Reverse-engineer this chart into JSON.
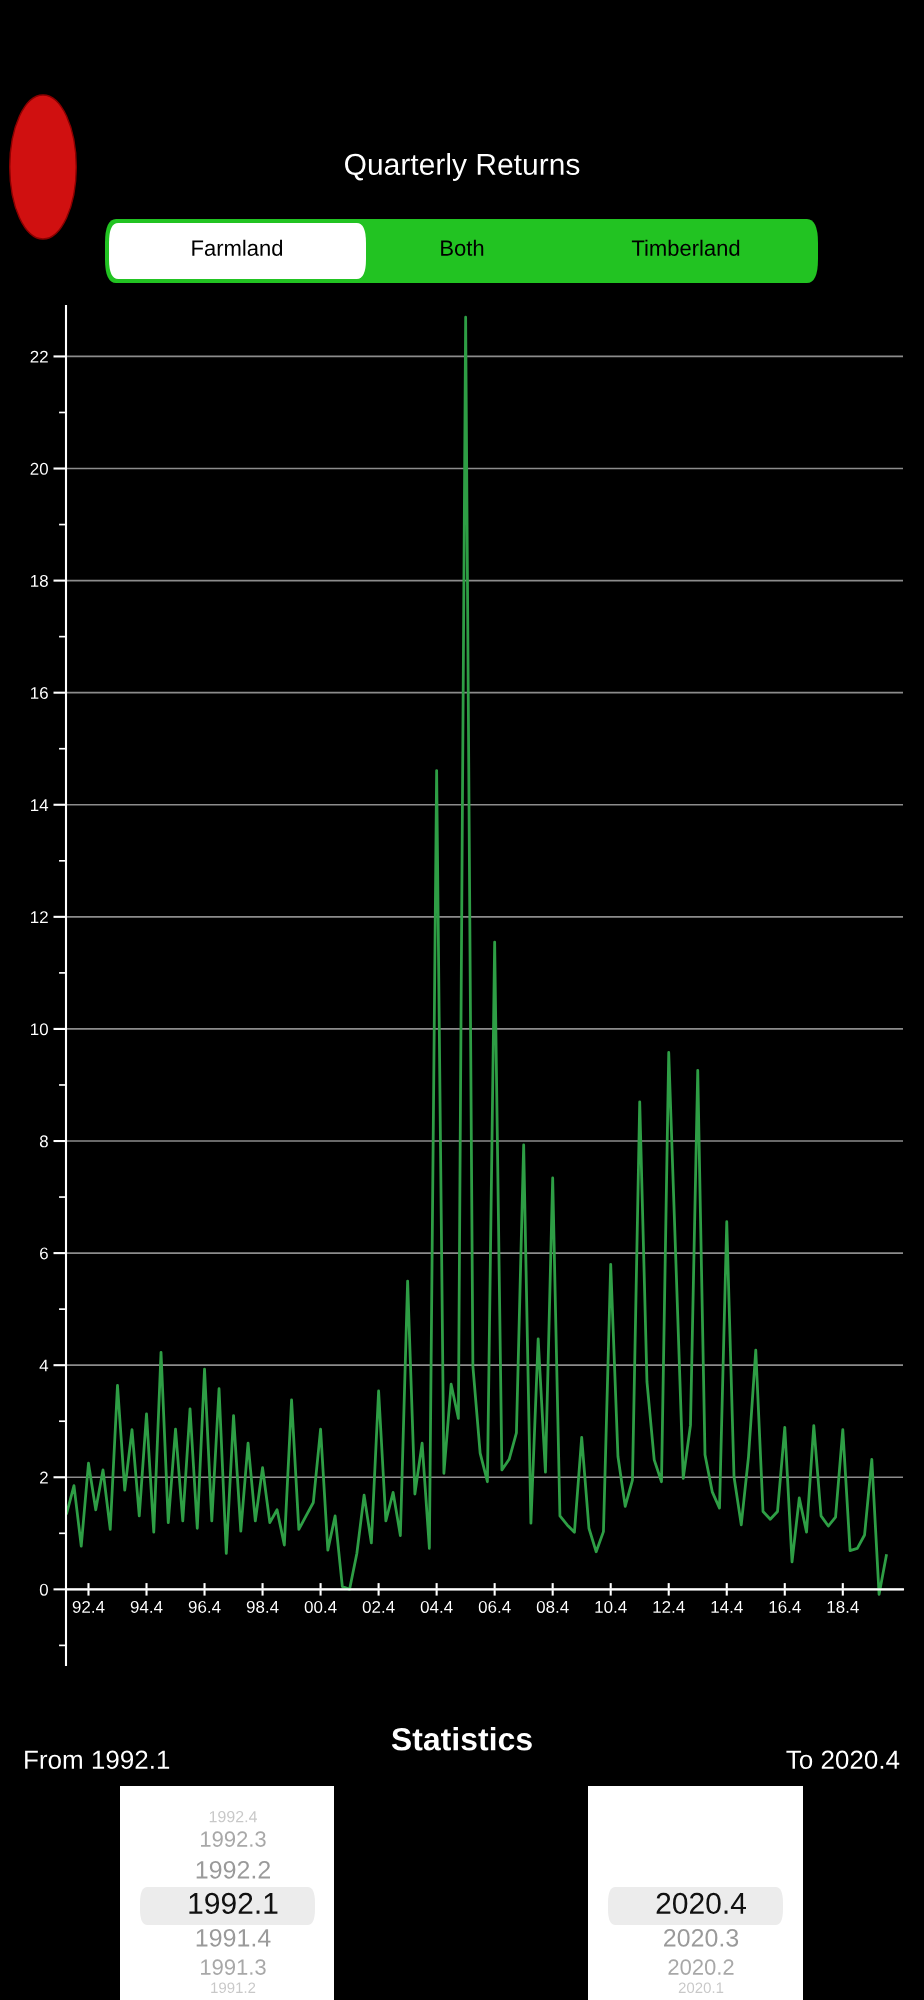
{
  "chart_data": {
    "type": "line",
    "title": "Quarterly Returns",
    "categories": [
      null,
      null,
      null,
      "92.4",
      null,
      null,
      null,
      null,
      null,
      null,
      null,
      "94.4",
      null,
      null,
      null,
      null,
      null,
      null,
      null,
      "96.4",
      null,
      null,
      null,
      null,
      null,
      null,
      null,
      "98.4",
      null,
      null,
      null,
      null,
      null,
      null,
      null,
      "00.4",
      null,
      null,
      null,
      null,
      null,
      null,
      null,
      "02.4",
      null,
      null,
      null,
      null,
      null,
      null,
      null,
      "04.4",
      null,
      null,
      null,
      null,
      null,
      null,
      null,
      "06.4",
      null,
      null,
      null,
      null,
      null,
      null,
      null,
      "08.4",
      null,
      null,
      null,
      null,
      null,
      null,
      null,
      "10.4",
      null,
      null,
      null,
      null,
      null,
      null,
      null,
      "12.4",
      null,
      null,
      null,
      null,
      null,
      null,
      null,
      "14.4",
      null,
      null,
      null,
      null,
      null,
      null,
      null,
      "16.4",
      null,
      null,
      null,
      null,
      null,
      null,
      null,
      "18.4",
      null,
      null,
      null,
      null,
      null,
      null
    ],
    "series": [
      {
        "color": "#2e9e45",
        "values": [
          1.36,
          1.85,
          0.77,
          2.25,
          1.42,
          2.13,
          1.07,
          3.64,
          1.77,
          2.85,
          1.31,
          3.13,
          1.02,
          4.23,
          1.19,
          2.86,
          1.22,
          3.22,
          1.09,
          3.93,
          1.22,
          3.58,
          0.64,
          3.1,
          1.04,
          2.61,
          1.22,
          2.17,
          1.19,
          1.42,
          0.79,
          3.38,
          1.07,
          1.31,
          1.55,
          2.86,
          0.7,
          1.31,
          0.05,
          0.0,
          0.64,
          1.68,
          0.83,
          3.54,
          1.22,
          1.73,
          0.96,
          5.5,
          1.7,
          2.61,
          0.73,
          14.61,
          2.07,
          3.66,
          3.05,
          22.7,
          3.98,
          2.43,
          1.92,
          11.55,
          2.13,
          2.32,
          2.79,
          7.93,
          1.18,
          4.47,
          2.09,
          7.34,
          1.31,
          1.15,
          1.02,
          2.71,
          1.09,
          0.67,
          1.03,
          5.8,
          2.37,
          1.48,
          1.95,
          8.7,
          3.7,
          2.31,
          1.92,
          9.58,
          5.8,
          1.98,
          2.93,
          9.26,
          2.4,
          1.74,
          1.45,
          6.56,
          2.01,
          1.15,
          2.37,
          4.27,
          1.39,
          1.25,
          1.39,
          2.89,
          0.49,
          1.63,
          1.02,
          2.92,
          1.31,
          1.13,
          1.29,
          2.85,
          0.69,
          0.73,
          0.97,
          2.32,
          -0.09,
          0.6
        ]
      }
    ],
    "ylim": [
      -1.35,
      22.9
    ],
    "yticks": [
      {
        "value": -1,
        "label": null
      },
      0,
      {
        "value": 1,
        "label": null
      },
      2,
      {
        "value": 3,
        "label": null
      },
      4,
      {
        "value": 5,
        "label": null
      },
      6,
      {
        "value": 7,
        "label": null
      },
      8,
      {
        "value": 9,
        "label": null
      },
      10,
      {
        "value": 11,
        "label": null
      },
      12,
      {
        "value": 13,
        "label": null
      },
      14,
      {
        "value": 15,
        "label": null
      },
      16,
      {
        "value": 17,
        "label": null
      },
      18,
      {
        "value": 19,
        "label": null
      },
      20,
      {
        "value": 21,
        "label": null
      },
      22
    ],
    "grid": "y",
    "annotations": [
      "Farmland",
      "Both",
      "Timberland",
      "Statistics",
      "From 1992.1",
      "To 2020.4",
      "1992.4",
      "1992.3",
      "1992.2",
      "1992.1",
      "1991.4",
      "1991.3",
      "1991.2",
      "2020.4",
      "2020.3",
      "2020.2",
      "2020.1"
    ]
  }
}
